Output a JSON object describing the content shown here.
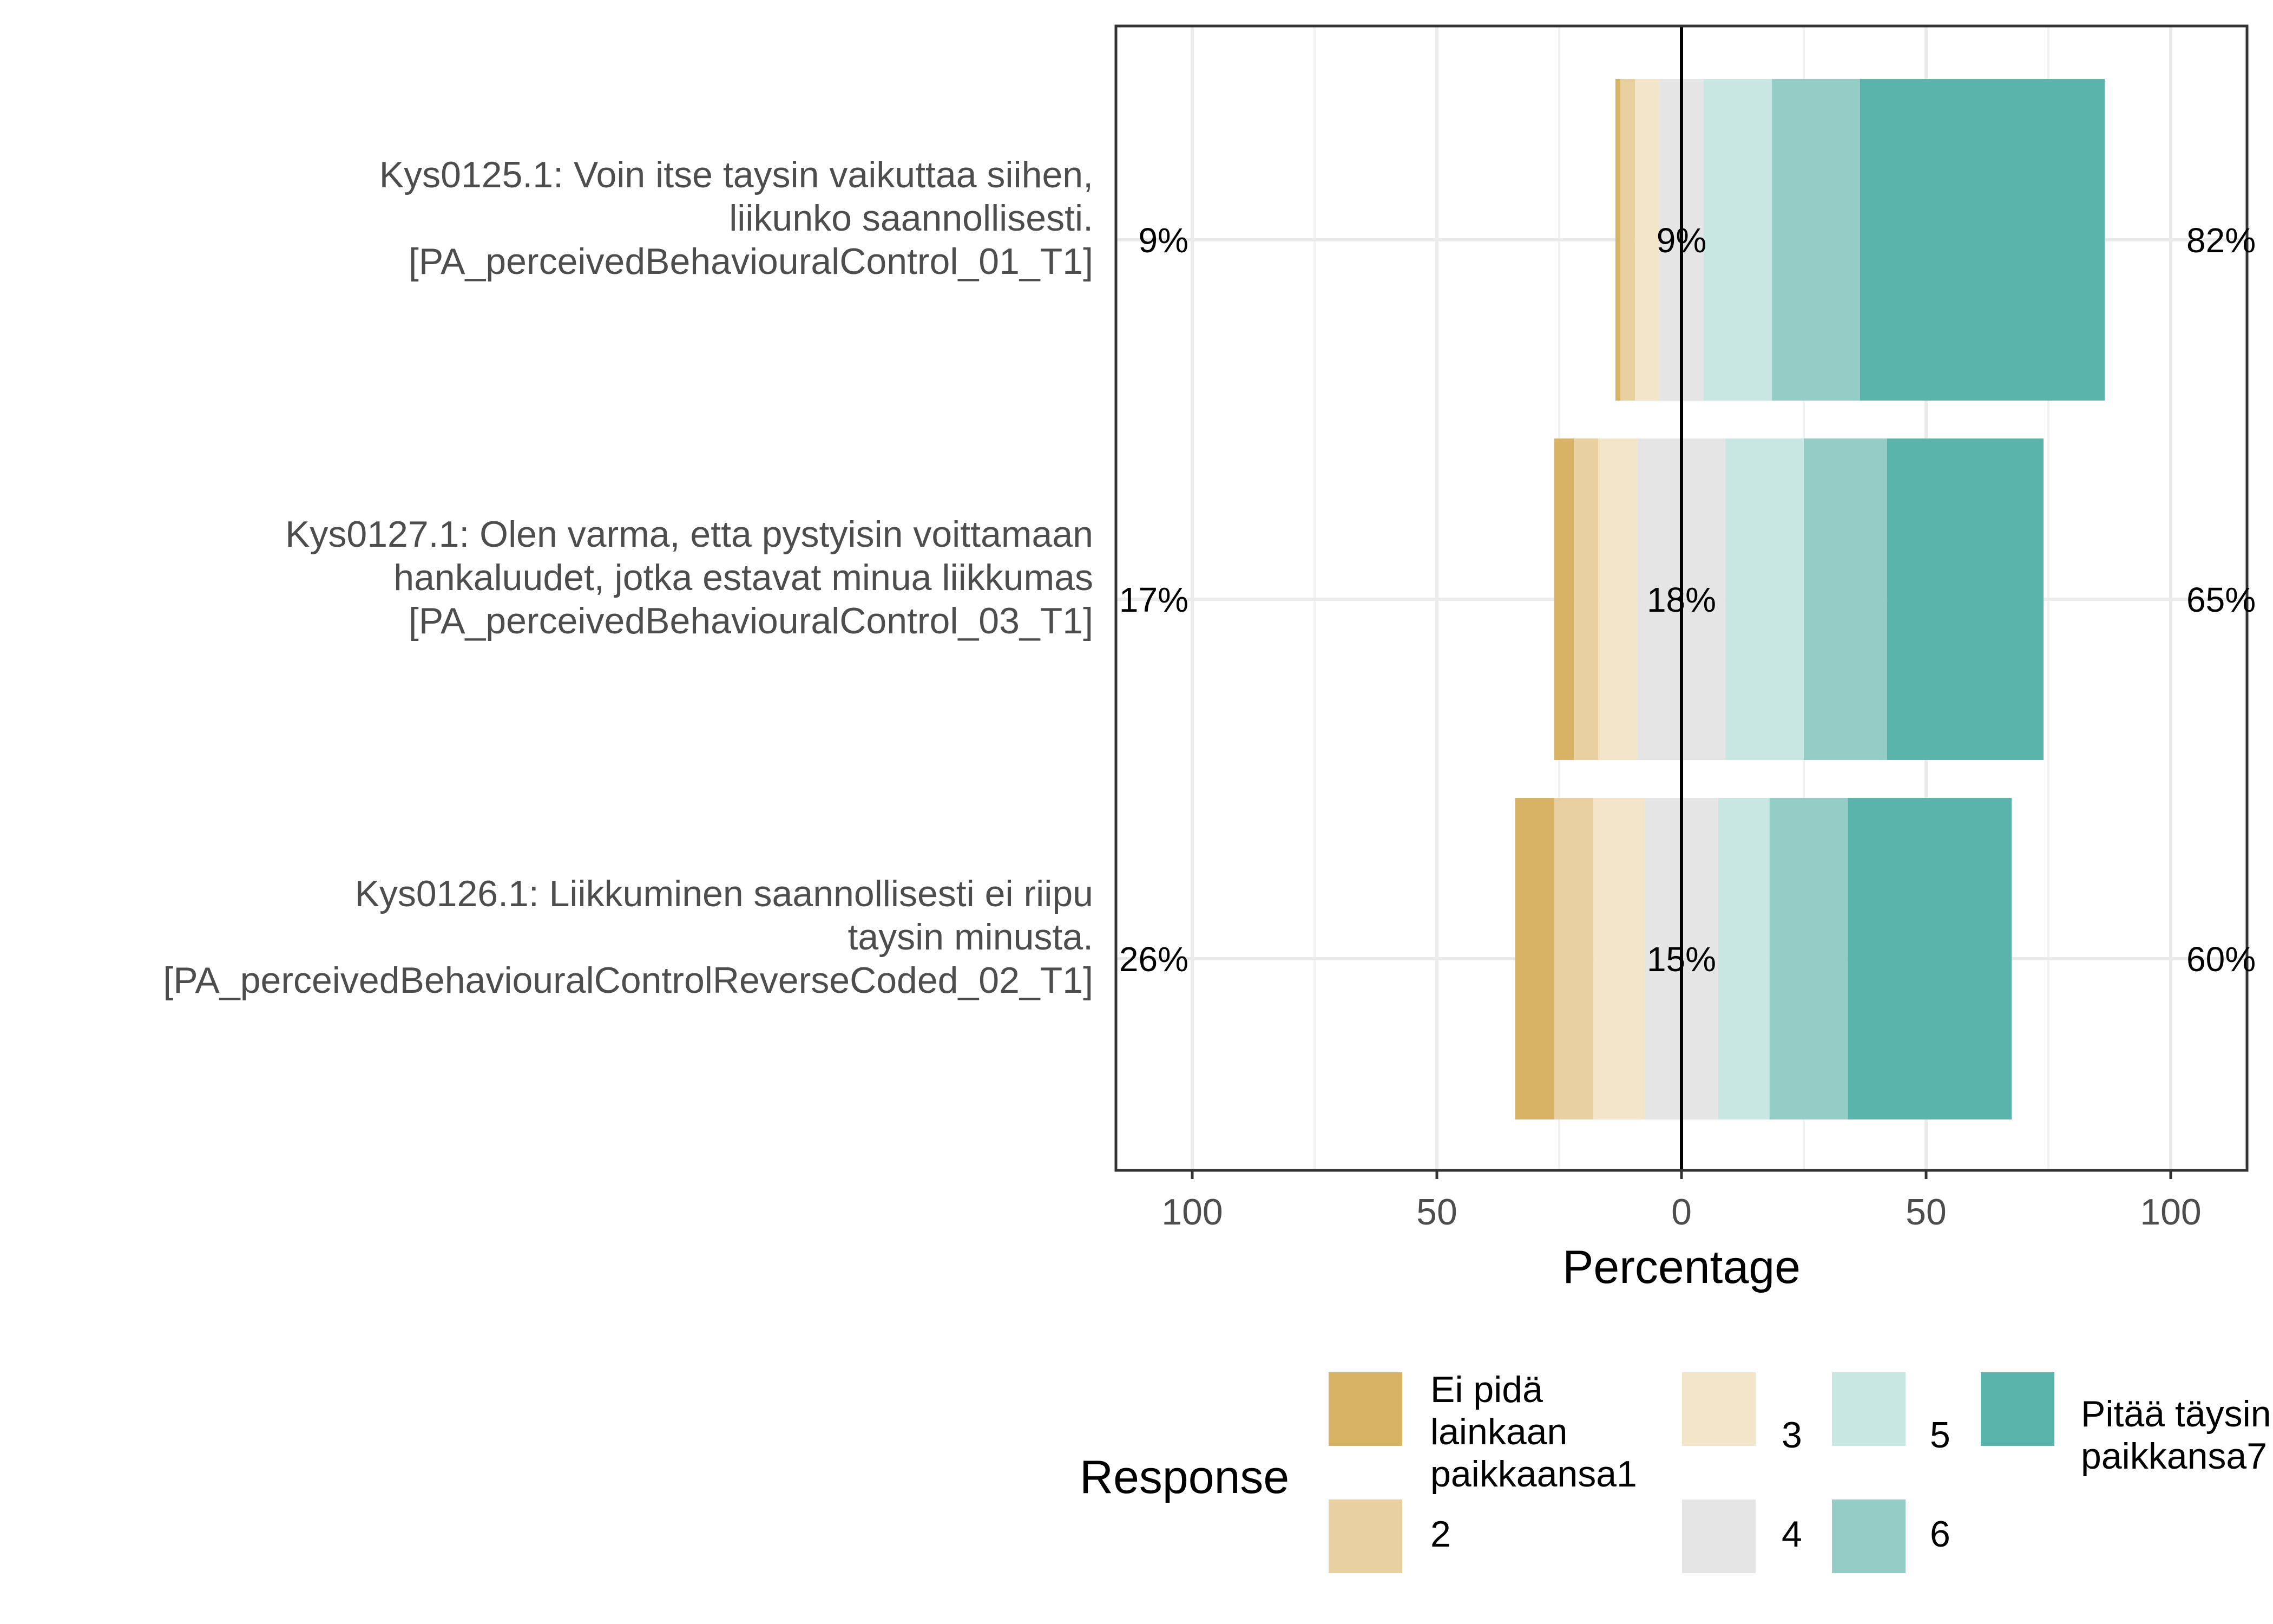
{
  "chart_data": {
    "type": "bar",
    "orientation": "horizontal",
    "stacking": "diverging",
    "xlabel": "Percentage",
    "xlim": [
      -100,
      100
    ],
    "xticks": [
      -100,
      -50,
      0,
      50,
      100
    ],
    "xtick_labels": [
      "100",
      "50",
      "0",
      "50",
      "100"
    ],
    "grid": true,
    "legend_position": "bottom",
    "legend_title": "Response",
    "categories": [
      {
        "label_lines": [
          "Kys0125.1: Voin itse taysin vaikuttaa siihen,",
          "liikunko saannollisesti.",
          "[PA_perceivedBehaviouralControl_01_T1]"
        ],
        "left_label": "9%",
        "center_label": "9%",
        "right_label": "82%"
      },
      {
        "label_lines": [
          "Kys0127.1: Olen varma, etta pystyisin voittamaan",
          "hankaluudet, jotka estavat minua liikkumas",
          "[PA_perceivedBehaviouralControl_03_T1]"
        ],
        "left_label": "17%",
        "center_label": "18%",
        "right_label": "65%"
      },
      {
        "label_lines": [
          "Kys0126.1: Liikkuminen saannollisesti ei riipu",
          "taysin minusta.",
          "[PA_perceivedBehaviouralControlReverseCoded_02_T1]"
        ],
        "left_label": "26%",
        "center_label": "15%",
        "right_label": "60%"
      }
    ],
    "series": [
      {
        "name": "Ei pidä lainkaan paikkaansa1",
        "color": "#d8b365",
        "values": [
          1,
          4,
          8
        ]
      },
      {
        "name": "2",
        "color": "#e8d0a0",
        "values": [
          3,
          5,
          8
        ]
      },
      {
        "name": "3",
        "color": "#f3e5c9",
        "values": [
          5,
          8,
          10.5
        ]
      },
      {
        "name": "4",
        "color": "#e5e5e5",
        "values": [
          9,
          18,
          15
        ]
      },
      {
        "name": "5",
        "color": "#c8e6e2",
        "values": [
          14,
          16,
          10.5
        ]
      },
      {
        "name": "6",
        "color": "#93cdc5",
        "values": [
          18,
          17,
          16
        ]
      },
      {
        "name": "Pitää täysin paikkansa7",
        "color": "#5ab4ac",
        "values": [
          50,
          32,
          33.5
        ]
      }
    ]
  },
  "legend": {
    "title": "Response",
    "items": [
      {
        "lines": [
          "Ei pidä",
          "lainkaan",
          "paikkaansa1"
        ],
        "color": "#d8b365"
      },
      {
        "lines": [
          "2"
        ],
        "color": "#e8d0a0"
      },
      {
        "lines": [
          "3"
        ],
        "color": "#f3e5c9"
      },
      {
        "lines": [
          "4"
        ],
        "color": "#e5e5e5"
      },
      {
        "lines": [
          "5"
        ],
        "color": "#c8e6e2"
      },
      {
        "lines": [
          "6"
        ],
        "color": "#93cdc5"
      },
      {
        "lines": [
          "Pitää täysin",
          "paikkansa7"
        ],
        "color": "#5ab4ac"
      }
    ]
  }
}
